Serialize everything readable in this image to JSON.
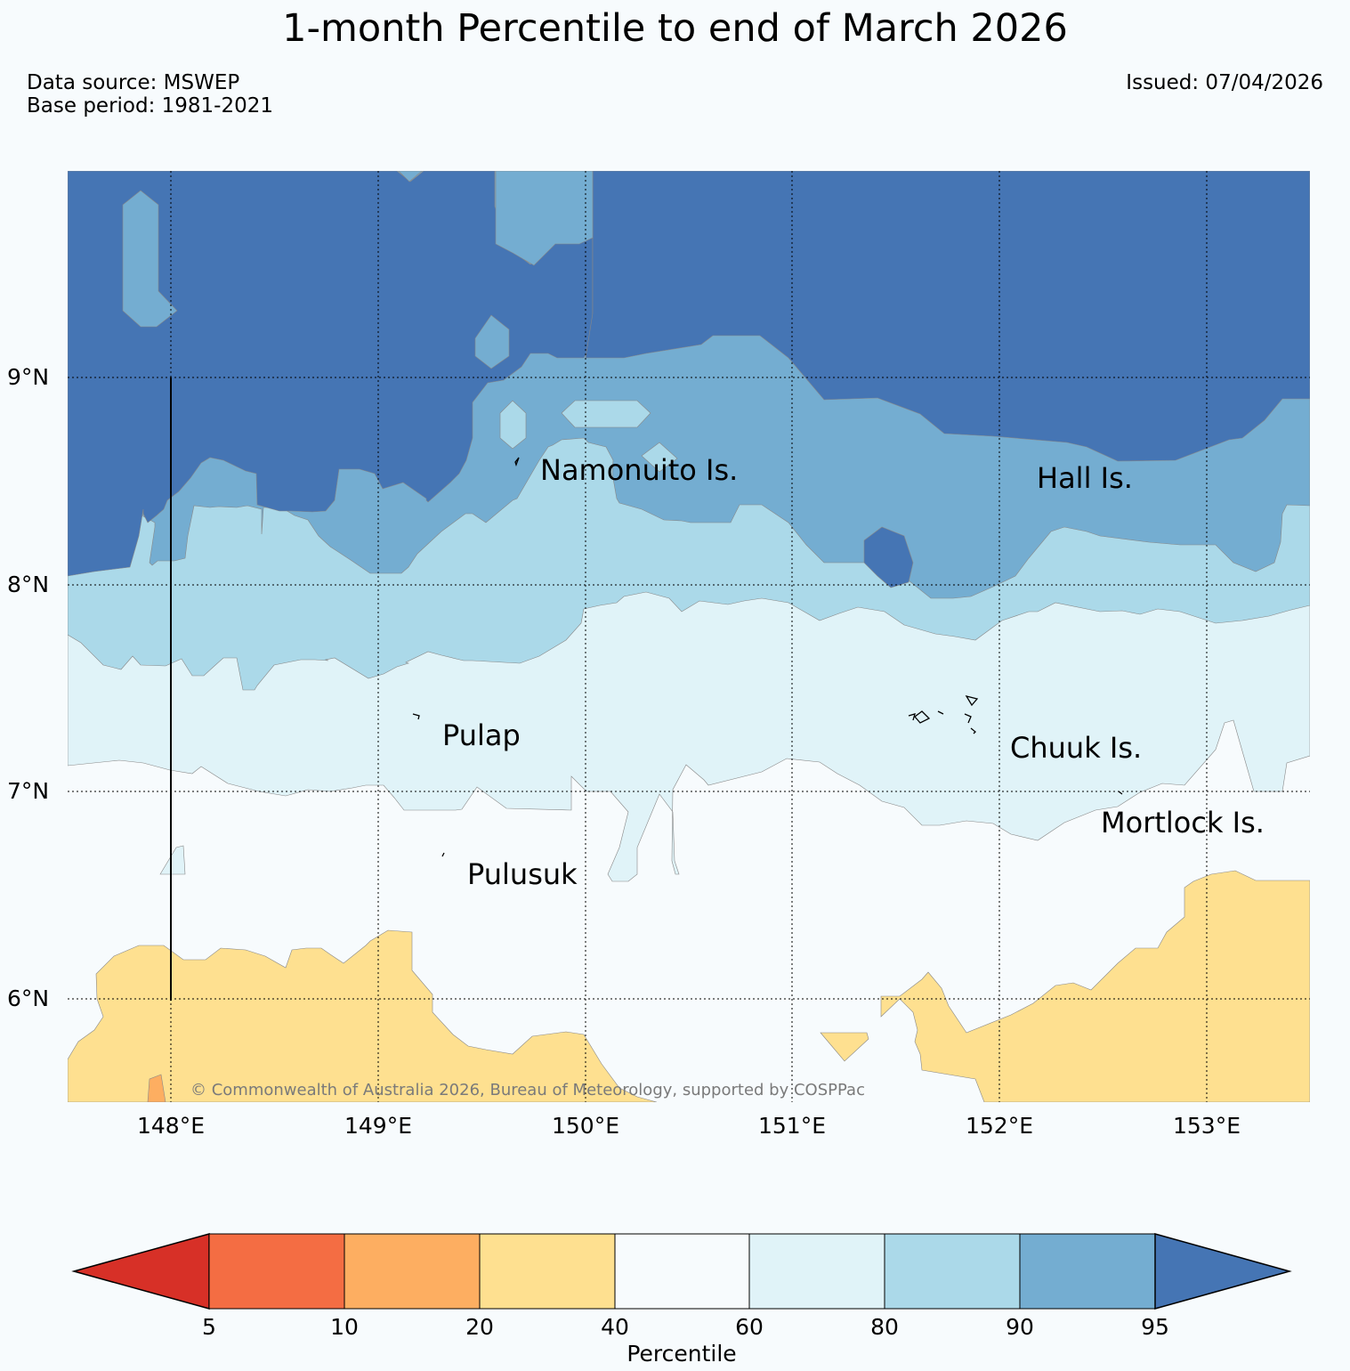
{
  "title": "1-month Percentile to end of March 2026",
  "data_source": "Data source: MSWEP",
  "base_period": "Base period: 1981-2021",
  "issued": "Issued: 07/04/2026",
  "copyright": "© Commonwealth of Australia 2026, Bureau of Meteorology, supported by COSPPac",
  "map": {
    "lon_min": 147.5,
    "lon_max": 153.5,
    "lat_min": 5.5,
    "lat_max": 10.0,
    "lat_labels": [
      "9°N",
      "8°N",
      "7°N",
      "6°N"
    ],
    "lon_labels": [
      "148°E",
      "149°E",
      "150°E",
      "151°E",
      "152°E",
      "153°E"
    ]
  },
  "places": {
    "namonuito": "Namonuito Is.",
    "hall": "Hall Is.",
    "pulap": "Pulap",
    "chuuk": "Chuuk Is.",
    "mortlock": "Mortlock Is.",
    "pulusuk": "Pulusuk"
  },
  "legend": {
    "title": "Percentile",
    "ticks": [
      "5",
      "10",
      "20",
      "40",
      "60",
      "80",
      "90",
      "95"
    ],
    "colors": {
      "below_5": "#d73027",
      "5_10": "#f46d43",
      "10_20": "#fdae61",
      "20_40": "#fee090",
      "40_60": "#f7fbfd",
      "60_80": "#e0f3f8",
      "80_90": "#abd9e9",
      "90_95": "#74add1",
      "above_95": "#4575b4"
    }
  }
}
